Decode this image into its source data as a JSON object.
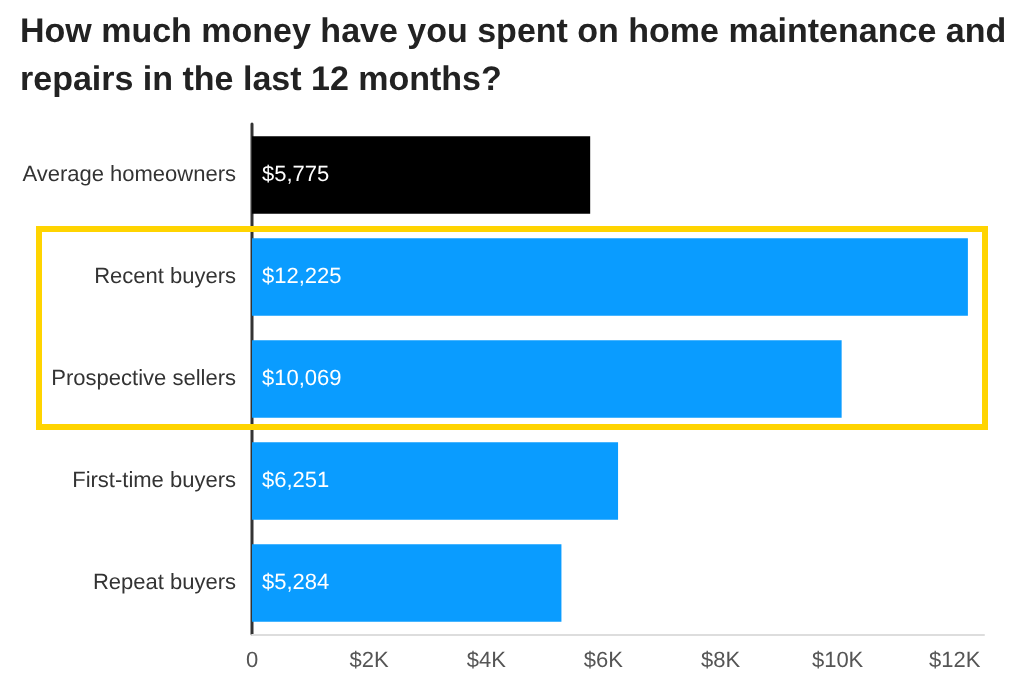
{
  "chart_data": {
    "type": "bar",
    "orientation": "horizontal",
    "title": "How much money have you spent on home maintenance and repairs in the last 12 months?",
    "categories": [
      "Average homeowners",
      "Recent buyers",
      "Prospective sellers",
      "First-time buyers",
      "Repeat buyers"
    ],
    "values": [
      5775,
      12225,
      10069,
      6251,
      5284
    ],
    "colors": [
      "#000000",
      "#0a9cff",
      "#0a9cff",
      "#0a9cff",
      "#0a9cff"
    ],
    "value_labels": [
      "$5,775",
      "$12,225",
      "$10,069",
      "$6,251",
      "$5,284"
    ],
    "xlim": [
      0,
      12500
    ],
    "xticks": [
      {
        "value": 0,
        "label": "0"
      },
      {
        "value": 2000,
        "label": "$2K"
      },
      {
        "value": 4000,
        "label": "$4K"
      },
      {
        "value": 6000,
        "label": "$6K"
      },
      {
        "value": 8000,
        "label": "$8K"
      },
      {
        "value": 10000,
        "label": "$10K"
      },
      {
        "value": 12000,
        "label": "$12K"
      }
    ],
    "grid": false
  }
}
